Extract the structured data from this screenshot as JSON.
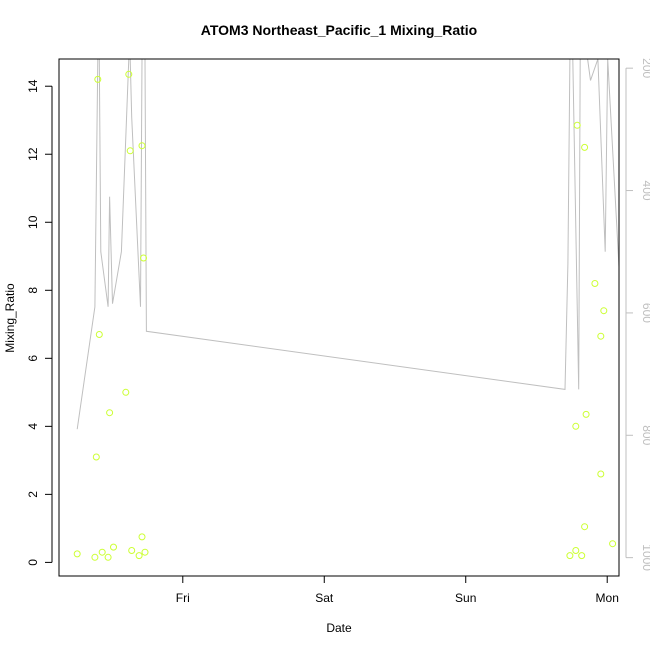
{
  "chart_data": {
    "type": "scatter",
    "title": "ATOM3 Northeast_Pacific_1 Mixing_Ratio",
    "xlabel": "Date",
    "ylabel": "Mixing_Ratio",
    "x_tick_labels": [
      "Fri",
      "Sat",
      "Sun",
      "Mon"
    ],
    "y_ticks": [
      0,
      2,
      4,
      6,
      8,
      10,
      12,
      14
    ],
    "y_right_ticks": [
      200,
      400,
      600,
      800,
      1000
    ],
    "xlim": [
      "2017-10-05T03:00",
      "2017-10-09T02:00"
    ],
    "ylim": [
      -0.4,
      14.8
    ],
    "y_right_lim": [
      1030,
      185
    ],
    "y_right_reversed": true,
    "grid": false,
    "legend": "none",
    "colors": {
      "points": "#ccff33",
      "line": "#bfbfbf",
      "axis": "#000000",
      "right_axis": "#bfbfbf"
    },
    "series": [
      {
        "type": "scatter",
        "points": [
          [
            "2017-10-05T06:05",
            0.25
          ],
          [
            "2017-10-05T09:05",
            0.15
          ],
          [
            "2017-10-05T09:20",
            3.1
          ],
          [
            "2017-10-05T09:35",
            14.2
          ],
          [
            "2017-10-05T09:50",
            6.7
          ],
          [
            "2017-10-05T10:20",
            0.3
          ],
          [
            "2017-10-05T11:20",
            0.15
          ],
          [
            "2017-10-05T11:35",
            4.4
          ],
          [
            "2017-10-05T12:15",
            0.45
          ],
          [
            "2017-10-05T14:20",
            5.0
          ],
          [
            "2017-10-05T14:50",
            14.35
          ],
          [
            "2017-10-05T15:05",
            12.1
          ],
          [
            "2017-10-05T15:20",
            0.35
          ],
          [
            "2017-10-05T16:35",
            0.2
          ],
          [
            "2017-10-05T17:05",
            12.25
          ],
          [
            "2017-10-05T17:05",
            0.75
          ],
          [
            "2017-10-05T17:20",
            8.95
          ],
          [
            "2017-10-05T17:35",
            0.3
          ],
          [
            "2017-10-08T17:40",
            0.2
          ],
          [
            "2017-10-08T18:40",
            4.0
          ],
          [
            "2017-10-08T18:40",
            0.35
          ],
          [
            "2017-10-08T18:55",
            12.85
          ],
          [
            "2017-10-08T19:40",
            0.2
          ],
          [
            "2017-10-08T20:10",
            1.05
          ],
          [
            "2017-10-08T20:10",
            12.2
          ],
          [
            "2017-10-08T20:25",
            4.35
          ],
          [
            "2017-10-08T21:55",
            8.2
          ],
          [
            "2017-10-08T22:55",
            2.6
          ],
          [
            "2017-10-08T22:55",
            6.65
          ],
          [
            "2017-10-08T23:25",
            7.4
          ],
          [
            "2017-10-09T00:55",
            0.55
          ]
        ]
      },
      {
        "type": "line",
        "axis": "right",
        "points": [
          [
            "2017-10-05T06:05",
            790
          ],
          [
            "2017-10-05T09:05",
            590
          ],
          [
            "2017-10-05T09:35",
            185
          ],
          [
            "2017-10-05T09:50",
            185
          ],
          [
            "2017-10-05T10:05",
            500
          ],
          [
            "2017-10-05T11:20",
            590
          ],
          [
            "2017-10-05T11:35",
            410
          ],
          [
            "2017-10-05T12:05",
            585
          ],
          [
            "2017-10-05T13:35",
            500
          ],
          [
            "2017-10-05T14:50",
            185
          ],
          [
            "2017-10-05T15:05",
            185
          ],
          [
            "2017-10-05T15:20",
            280
          ],
          [
            "2017-10-05T16:50",
            590
          ],
          [
            "2017-10-05T17:05",
            185
          ],
          [
            "2017-10-05T17:35",
            185
          ],
          [
            "2017-10-05T17:50",
            630
          ],
          [
            "2017-10-08T16:50",
            725
          ],
          [
            "2017-10-08T17:20",
            520
          ],
          [
            "2017-10-08T17:40",
            185
          ],
          [
            "2017-10-08T18:10",
            185
          ],
          [
            "2017-10-08T19:10",
            725
          ],
          [
            "2017-10-08T19:25",
            185
          ],
          [
            "2017-10-08T20:40",
            185
          ],
          [
            "2017-10-08T21:10",
            220
          ],
          [
            "2017-10-08T22:25",
            185
          ],
          [
            "2017-10-08T23:40",
            500
          ],
          [
            "2017-10-09T00:05",
            185
          ],
          [
            "2017-10-09T02:00",
            525
          ]
        ]
      }
    ]
  }
}
